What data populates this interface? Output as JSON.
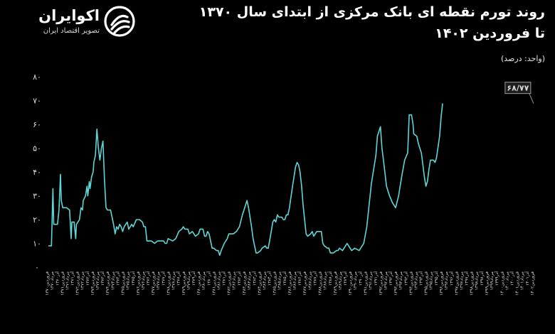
{
  "brand": {
    "name": "اکوایران",
    "tagline": "تصویر اقتصاد ایران",
    "logo_icon": "ecoiran-swirl-logo-icon"
  },
  "header": {
    "title_line1": "روند تورم نقطه ای بانک مرکزی از ابتدای سال ۱۳۷۰",
    "title_line2": "تا فروردین ۱۴۰۲",
    "unit": "(واحد: درصد)"
  },
  "colors": {
    "background": "#000000",
    "line": "#5fd6d6",
    "text": "#ffffff"
  },
  "chart_data": {
    "type": "line",
    "title": "روند تورم نقطه ای بانک مرکزی از ابتدای سال ۱۳۷۰ تا فروردین ۱۴۰۲",
    "xlabel": "",
    "ylabel": "",
    "ylim": [
      0,
      80
    ],
    "yticks": [
      "۰",
      "۱۰",
      "۲۰",
      "۳۰",
      "۴۰",
      "۵۰",
      "۶۰",
      "۷۰",
      "۸۰"
    ],
    "grid": false,
    "legend": "none",
    "x_range": [
      "فروردین ۱۳۷۰",
      "فروردین ۱۴۰۲"
    ],
    "callout": {
      "label": "۶۸/۷۷",
      "x": 1402.0,
      "y": 68.77
    },
    "x_ticks": [
      {
        "x": 1370.0,
        "label": "فروردین۱۳۷۰"
      },
      {
        "x": 1370.33,
        "label": "مرداد۱۳۷۰"
      },
      {
        "x": 1370.67,
        "label": "آذر۱۳۷۰"
      },
      {
        "x": 1371.0,
        "label": "فروردین۱۳۷۱"
      },
      {
        "x": 1371.33,
        "label": "مرداد۱۳۷۱"
      },
      {
        "x": 1371.67,
        "label": "آذر۱۳۷۱"
      },
      {
        "x": 1372.0,
        "label": "فروردین۱۳۷۲"
      },
      {
        "x": 1372.33,
        "label": "مرداد۱۳۷۲"
      },
      {
        "x": 1372.67,
        "label": "آذر۱۳۷۲"
      },
      {
        "x": 1373.0,
        "label": "فروردین۱۳۷۳"
      },
      {
        "x": 1373.33,
        "label": "مرداد۱۳۷۳"
      },
      {
        "x": 1373.67,
        "label": "آذر۱۳۷۳"
      },
      {
        "x": 1374.0,
        "label": "فروردین۱۳۷۴"
      },
      {
        "x": 1374.33,
        "label": "مرداد۱۳۷۴"
      },
      {
        "x": 1374.67,
        "label": "آذر۱۳۷۴"
      },
      {
        "x": 1375.0,
        "label": "فروردین۱۳۷۵"
      },
      {
        "x": 1375.33,
        "label": "مرداد۱۳۷۵"
      },
      {
        "x": 1375.67,
        "label": "آذر۱۳۷۵"
      },
      {
        "x": 1376.0,
        "label": "فروردین۱۳۷۶"
      },
      {
        "x": 1376.33,
        "label": "مرداد۱۳۷۶"
      },
      {
        "x": 1376.67,
        "label": "آذر۱۳۷۶"
      },
      {
        "x": 1377.0,
        "label": "فروردین۱۳۷۷"
      },
      {
        "x": 1377.33,
        "label": "مرداد۱۳۷۷"
      },
      {
        "x": 1377.67,
        "label": "آذر۱۳۷۷"
      },
      {
        "x": 1378.0,
        "label": "فروردین۱۳۷۸"
      },
      {
        "x": 1378.33,
        "label": "مرداد۱۳۷۸"
      },
      {
        "x": 1378.67,
        "label": "آذر۱۳۷۸"
      },
      {
        "x": 1379.0,
        "label": "فروردین۱۳۷۹"
      },
      {
        "x": 1379.33,
        "label": "مرداد۱۳۷۹"
      },
      {
        "x": 1379.67,
        "label": "آذر۱۳۷۹"
      },
      {
        "x": 1380.0,
        "label": "فروردین۱۳۸۰"
      },
      {
        "x": 1380.33,
        "label": "مرداد۱۳۸۰"
      },
      {
        "x": 1380.67,
        "label": "آذر۱۳۸۰"
      },
      {
        "x": 1381.0,
        "label": "فروردین۱۳۸۱"
      },
      {
        "x": 1381.33,
        "label": "مرداد۱۳۸۱"
      },
      {
        "x": 1381.67,
        "label": "آذر۱۳۸۱"
      },
      {
        "x": 1382.0,
        "label": "فروردین۱۳۸۲"
      },
      {
        "x": 1382.33,
        "label": "مرداد۱۳۸۲"
      },
      {
        "x": 1382.67,
        "label": "آذر۱۳۸۲"
      },
      {
        "x": 1383.0,
        "label": "فروردین۱۳۸۳"
      },
      {
        "x": 1383.33,
        "label": "مرداد۱۳۸۳"
      },
      {
        "x": 1383.67,
        "label": "آذر۱۳۸۳"
      },
      {
        "x": 1384.0,
        "label": "فروردین۱۳۸۴"
      },
      {
        "x": 1384.33,
        "label": "مرداد۱۳۸۴"
      },
      {
        "x": 1384.67,
        "label": "آذر۱۳۸۴"
      },
      {
        "x": 1385.0,
        "label": "فروردین۱۳۸۵"
      },
      {
        "x": 1385.33,
        "label": "مرداد۱۳۸۵"
      },
      {
        "x": 1385.67,
        "label": "آذر۱۳۸۵"
      },
      {
        "x": 1386.0,
        "label": "فروردین۱۳۸۶"
      },
      {
        "x": 1386.33,
        "label": "مرداد۱۳۸۶"
      },
      {
        "x": 1386.67,
        "label": "آذر۱۳۸۶"
      },
      {
        "x": 1387.0,
        "label": "فروردین۱۳۸۷"
      },
      {
        "x": 1387.33,
        "label": "مرداد۱۳۸۷"
      },
      {
        "x": 1387.67,
        "label": "آذر۱۳۸۷"
      },
      {
        "x": 1388.0,
        "label": "فروردین۱۳۸۸"
      },
      {
        "x": 1388.33,
        "label": "مرداد۱۳۸۸"
      },
      {
        "x": 1388.67,
        "label": "آذر۱۳۸۸"
      },
      {
        "x": 1389.0,
        "label": "فروردین۱۳۸۹"
      },
      {
        "x": 1389.33,
        "label": "مرداد۱۳۸۹"
      },
      {
        "x": 1389.67,
        "label": "آذر۱۳۸۹"
      },
      {
        "x": 1390.0,
        "label": "فروردین۱۳۹۰"
      },
      {
        "x": 1390.33,
        "label": "مرداد۱۳۹۰"
      },
      {
        "x": 1390.67,
        "label": "آذر۱۳۹۰"
      },
      {
        "x": 1391.0,
        "label": "فروردین۱۳۹۱"
      },
      {
        "x": 1391.33,
        "label": "مرداد۱۳۹۱"
      },
      {
        "x": 1391.67,
        "label": "آذر۱۳۹۱"
      },
      {
        "x": 1392.0,
        "label": "فروردین۱۳۹۲"
      },
      {
        "x": 1392.33,
        "label": "مرداد۱۳۹۲"
      },
      {
        "x": 1392.67,
        "label": "آذر۱۳۹۲"
      },
      {
        "x": 1393.0,
        "label": "فروردین۱۳۹۳"
      },
      {
        "x": 1393.33,
        "label": "مرداد۱۳۹۳"
      },
      {
        "x": 1393.67,
        "label": "آذر۱۳۹۳"
      },
      {
        "x": 1394.0,
        "label": "فروردین۱۳۹۴"
      },
      {
        "x": 1394.33,
        "label": "مرداد۱۳۹۴"
      },
      {
        "x": 1394.67,
        "label": "آذر۱۳۹۴"
      },
      {
        "x": 1395.0,
        "label": "فروردین۱۳۹۵"
      },
      {
        "x": 1395.33,
        "label": "مرداد۱۳۹۵"
      },
      {
        "x": 1395.67,
        "label": "آذر۱۳۹۵"
      },
      {
        "x": 1396.0,
        "label": "فروردین۱۳۹۶"
      },
      {
        "x": 1396.33,
        "label": "مرداد۱۳۹۶"
      },
      {
        "x": 1396.67,
        "label": "آذر۱۳۹۶"
      },
      {
        "x": 1397.0,
        "label": "فروردین۱۳۹۷"
      },
      {
        "x": 1397.33,
        "label": "مرداد۱۳۹۷"
      },
      {
        "x": 1397.67,
        "label": "آذر۱۳۹۷"
      },
      {
        "x": 1398.0,
        "label": "فروردین۱۳۹۸"
      },
      {
        "x": 1398.33,
        "label": "مرداد۱۳۹۸"
      },
      {
        "x": 1398.67,
        "label": "آذر۱۳۹۸"
      },
      {
        "x": 1399.0,
        "label": "فروردین۱۳۹۹"
      },
      {
        "x": 1399.33,
        "label": "مرداد۱۳۹۹"
      },
      {
        "x": 1399.67,
        "label": "آذر۱۳۹۹"
      },
      {
        "x": 1400.0,
        "label": "فروردین۱۴۰۰"
      },
      {
        "x": 1400.33,
        "label": "مرداد۱۴۰۰"
      },
      {
        "x": 1400.67,
        "label": "آذر۱۴۰۰"
      },
      {
        "x": 1401.0,
        "label": "فروردین۱۴۰۱"
      },
      {
        "x": 1401.33,
        "label": "مرداد۱۴۰۱"
      },
      {
        "x": 1401.67,
        "label": "آذر۱۴۰۱"
      },
      {
        "x": 1402.0,
        "label": "فروردین۱۴۰۲"
      }
    ],
    "series": [
      {
        "points": [
          [
            1370.0,
            9
          ],
          [
            1370.2,
            9
          ],
          [
            1370.3,
            33
          ],
          [
            1370.35,
            18
          ],
          [
            1370.6,
            18
          ],
          [
            1370.7,
            24
          ],
          [
            1370.8,
            39
          ],
          [
            1370.85,
            28
          ],
          [
            1370.95,
            25
          ],
          [
            1371.2,
            25
          ],
          [
            1371.4,
            24
          ],
          [
            1371.5,
            12
          ],
          [
            1371.55,
            19
          ],
          [
            1371.7,
            19
          ],
          [
            1371.8,
            12
          ],
          [
            1371.85,
            18
          ],
          [
            1372.05,
            20
          ],
          [
            1372.15,
            25
          ],
          [
            1372.25,
            24
          ],
          [
            1372.3,
            28
          ],
          [
            1372.45,
            30
          ],
          [
            1372.55,
            34
          ],
          [
            1372.6,
            30
          ],
          [
            1372.7,
            36
          ],
          [
            1372.75,
            33
          ],
          [
            1372.85,
            38
          ],
          [
            1372.95,
            40
          ],
          [
            1373.0,
            44
          ],
          [
            1373.1,
            47
          ],
          [
            1373.2,
            58
          ],
          [
            1373.3,
            50
          ],
          [
            1373.4,
            45
          ],
          [
            1373.5,
            50
          ],
          [
            1373.6,
            53
          ],
          [
            1373.7,
            37
          ],
          [
            1373.8,
            25
          ],
          [
            1373.9,
            24
          ],
          [
            1374.1,
            24
          ],
          [
            1374.3,
            18
          ],
          [
            1374.4,
            14
          ],
          [
            1374.5,
            17
          ],
          [
            1374.6,
            16
          ],
          [
            1374.7,
            18
          ],
          [
            1374.8,
            17
          ],
          [
            1374.9,
            15
          ],
          [
            1375.0,
            17
          ],
          [
            1375.2,
            19
          ],
          [
            1375.3,
            16
          ],
          [
            1375.5,
            18
          ],
          [
            1375.6,
            17
          ],
          [
            1375.8,
            20
          ],
          [
            1376.0,
            20
          ],
          [
            1376.2,
            19
          ],
          [
            1376.3,
            17
          ],
          [
            1376.4,
            17
          ],
          [
            1376.5,
            11
          ],
          [
            1376.7,
            11
          ],
          [
            1376.8,
            11
          ],
          [
            1377.0,
            10
          ],
          [
            1377.2,
            11
          ],
          [
            1377.4,
            11
          ],
          [
            1377.6,
            11
          ],
          [
            1377.7,
            10
          ],
          [
            1377.8,
            10
          ],
          [
            1377.9,
            12
          ],
          [
            1378.2,
            11
          ],
          [
            1378.4,
            12
          ],
          [
            1378.6,
            15
          ],
          [
            1378.8,
            16
          ],
          [
            1378.9,
            17
          ],
          [
            1379.0,
            16
          ],
          [
            1379.2,
            16
          ],
          [
            1379.3,
            14
          ],
          [
            1379.5,
            15
          ],
          [
            1379.7,
            13
          ],
          [
            1379.9,
            14
          ],
          [
            1380.0,
            16
          ],
          [
            1380.2,
            16
          ],
          [
            1380.3,
            13
          ],
          [
            1380.4,
            13
          ],
          [
            1380.5,
            15
          ],
          [
            1380.6,
            14
          ],
          [
            1380.8,
            8
          ],
          [
            1380.9,
            8
          ],
          [
            1381.1,
            7
          ],
          [
            1381.2,
            7
          ],
          [
            1381.3,
            5
          ],
          [
            1381.4,
            7
          ],
          [
            1381.6,
            10
          ],
          [
            1381.8,
            12
          ],
          [
            1381.9,
            14
          ],
          [
            1382.2,
            14
          ],
          [
            1382.4,
            15
          ],
          [
            1382.5,
            16
          ],
          [
            1382.6,
            17
          ],
          [
            1382.8,
            22
          ],
          [
            1382.9,
            24
          ],
          [
            1383.0,
            26
          ],
          [
            1383.1,
            28
          ],
          [
            1383.2,
            25
          ],
          [
            1383.3,
            21
          ],
          [
            1383.4,
            17
          ],
          [
            1383.5,
            12
          ],
          [
            1383.6,
            9
          ],
          [
            1383.7,
            6
          ],
          [
            1383.8,
            6
          ],
          [
            1384.0,
            7
          ],
          [
            1384.1,
            8
          ],
          [
            1384.3,
            9
          ],
          [
            1384.4,
            8
          ],
          [
            1384.5,
            8
          ],
          [
            1384.7,
            15
          ],
          [
            1384.8,
            19
          ],
          [
            1384.9,
            20
          ],
          [
            1385.0,
            19
          ],
          [
            1385.1,
            22
          ],
          [
            1385.2,
            21
          ],
          [
            1385.4,
            21
          ],
          [
            1385.5,
            20
          ],
          [
            1385.6,
            20
          ],
          [
            1385.7,
            22
          ],
          [
            1385.8,
            22
          ],
          [
            1385.9,
            25
          ],
          [
            1386.1,
            34
          ],
          [
            1386.2,
            38
          ],
          [
            1386.3,
            42
          ],
          [
            1386.4,
            44
          ],
          [
            1386.5,
            43
          ],
          [
            1386.6,
            40
          ],
          [
            1386.7,
            34
          ],
          [
            1386.8,
            26
          ],
          [
            1386.9,
            20
          ],
          [
            1387.0,
            14
          ],
          [
            1387.1,
            13
          ],
          [
            1387.3,
            14
          ],
          [
            1387.4,
            15
          ],
          [
            1387.5,
            13
          ],
          [
            1387.7,
            15
          ],
          [
            1387.8,
            15
          ],
          [
            1388.0,
            15
          ],
          [
            1388.1,
            10
          ],
          [
            1388.2,
            9
          ],
          [
            1388.4,
            8
          ],
          [
            1388.5,
            8
          ],
          [
            1388.6,
            6
          ],
          [
            1388.8,
            6
          ],
          [
            1389.0,
            7
          ],
          [
            1389.1,
            7
          ],
          [
            1389.2,
            8
          ],
          [
            1389.4,
            7
          ],
          [
            1389.5,
            8
          ],
          [
            1389.7,
            10
          ],
          [
            1389.8,
            9
          ],
          [
            1389.9,
            8
          ],
          [
            1390.0,
            7
          ],
          [
            1390.2,
            8
          ],
          [
            1390.5,
            7
          ],
          [
            1390.8,
            10
          ],
          [
            1391.0,
            17
          ],
          [
            1391.3,
            35
          ],
          [
            1391.6,
            47
          ],
          [
            1391.7,
            55
          ],
          [
            1391.9,
            59
          ],
          [
            1392.0,
            50
          ],
          [
            1392.1,
            45
          ],
          [
            1392.3,
            34
          ],
          [
            1392.5,
            30
          ],
          [
            1392.7,
            27
          ],
          [
            1392.9,
            25
          ],
          [
            1393.1,
            30
          ],
          [
            1393.3,
            38
          ],
          [
            1393.5,
            45
          ],
          [
            1393.7,
            48
          ],
          [
            1393.8,
            64
          ],
          [
            1393.95,
            64
          ],
          [
            1394.05,
            60
          ],
          [
            1394.1,
            56
          ],
          [
            1394.3,
            55
          ],
          [
            1394.4,
            52
          ],
          [
            1394.6,
            48
          ],
          [
            1394.8,
            38
          ],
          [
            1394.9,
            34
          ],
          [
            1395.0,
            36
          ],
          [
            1395.1,
            41
          ],
          [
            1395.2,
            45
          ],
          [
            1395.4,
            45
          ],
          [
            1395.5,
            44
          ],
          [
            1395.6,
            46
          ],
          [
            1395.8,
            55
          ],
          [
            1395.9,
            63
          ],
          [
            1396.0,
            68.77
          ]
        ]
      }
    ]
  }
}
